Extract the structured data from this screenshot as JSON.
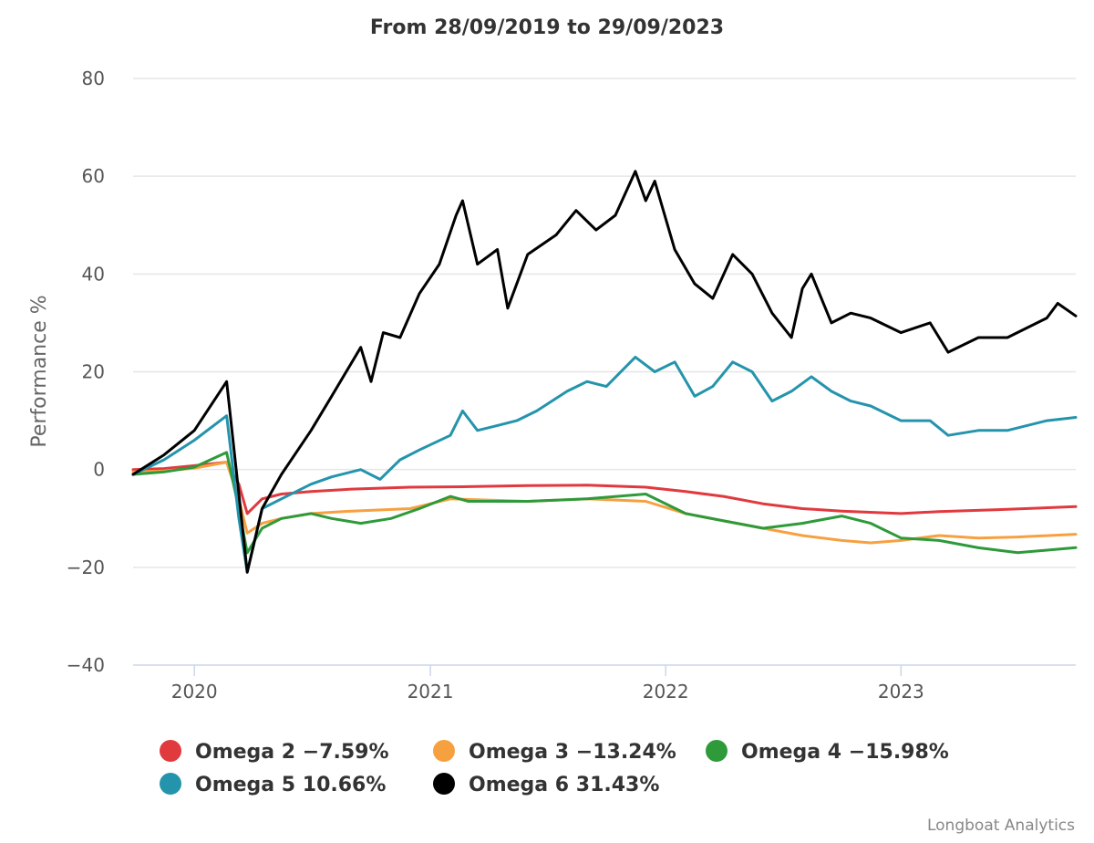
{
  "chart_data": {
    "type": "line",
    "title": "From 28/09/2019 to 29/09/2023",
    "xlabel": "",
    "ylabel": "Performance %",
    "ylim": [
      -40,
      80
    ],
    "yticks": [
      -40,
      -20,
      0,
      20,
      40,
      60,
      80
    ],
    "yticklabels": [
      "−40",
      "−20",
      "0",
      "20",
      "40",
      "60",
      "80"
    ],
    "xlim": [
      "2019-09-28",
      "2023-09-29"
    ],
    "xticks": [
      "2020-01-01",
      "2021-01-01",
      "2022-01-01",
      "2023-01-01"
    ],
    "xticklabels": [
      "2020",
      "2021",
      "2022",
      "2023"
    ],
    "grid": true,
    "legend_position": "bottom",
    "series": [
      {
        "name": "Omega 2",
        "legend_label": "Omega 2 −7.59%",
        "color": "#e0393e",
        "points": [
          [
            "2019-09-28",
            0
          ],
          [
            "2019-11-15",
            0.2
          ],
          [
            "2020-01-01",
            0.8
          ],
          [
            "2020-02-20",
            1.5
          ],
          [
            "2020-03-10",
            -3
          ],
          [
            "2020-03-23",
            -9
          ],
          [
            "2020-04-15",
            -6
          ],
          [
            "2020-05-15",
            -5
          ],
          [
            "2020-06-30",
            -4.5
          ],
          [
            "2020-09-01",
            -4
          ],
          [
            "2020-12-01",
            -3.6
          ],
          [
            "2021-03-01",
            -3.5
          ],
          [
            "2021-06-01",
            -3.3
          ],
          [
            "2021-09-01",
            -3.2
          ],
          [
            "2021-12-01",
            -3.6
          ],
          [
            "2022-02-01",
            -4.5
          ],
          [
            "2022-04-01",
            -5.5
          ],
          [
            "2022-06-01",
            -7
          ],
          [
            "2022-08-01",
            -8
          ],
          [
            "2022-10-01",
            -8.5
          ],
          [
            "2023-01-01",
            -9
          ],
          [
            "2023-03-01",
            -8.6
          ],
          [
            "2023-06-01",
            -8.2
          ],
          [
            "2023-09-29",
            -7.59
          ]
        ]
      },
      {
        "name": "Omega 3",
        "legend_label": "Omega 3 −13.24%",
        "color": "#f7a040",
        "points": [
          [
            "2019-09-28",
            -0.5
          ],
          [
            "2019-11-15",
            -0.3
          ],
          [
            "2020-01-01",
            0.3
          ],
          [
            "2020-02-20",
            1.5
          ],
          [
            "2020-03-10",
            -6
          ],
          [
            "2020-03-23",
            -13
          ],
          [
            "2020-04-15",
            -11
          ],
          [
            "2020-05-15",
            -10
          ],
          [
            "2020-06-30",
            -9
          ],
          [
            "2020-09-01",
            -8.5
          ],
          [
            "2020-12-01",
            -8
          ],
          [
            "2021-02-01",
            -6
          ],
          [
            "2021-06-01",
            -6.5
          ],
          [
            "2021-09-01",
            -6
          ],
          [
            "2021-12-01",
            -6.5
          ],
          [
            "2022-02-01",
            -9
          ],
          [
            "2022-04-01",
            -10.5
          ],
          [
            "2022-06-01",
            -12
          ],
          [
            "2022-08-01",
            -13.5
          ],
          [
            "2022-10-01",
            -14.5
          ],
          [
            "2022-11-15",
            -15
          ],
          [
            "2023-01-01",
            -14.5
          ],
          [
            "2023-03-01",
            -13.5
          ],
          [
            "2023-05-01",
            -14
          ],
          [
            "2023-07-01",
            -13.8
          ],
          [
            "2023-09-29",
            -13.24
          ]
        ]
      },
      {
        "name": "Omega 4",
        "legend_label": "Omega 4 −15.98%",
        "color": "#2e9a3a",
        "points": [
          [
            "2019-09-28",
            -1
          ],
          [
            "2019-11-15",
            -0.5
          ],
          [
            "2020-01-01",
            0.5
          ],
          [
            "2020-02-20",
            3.5
          ],
          [
            "2020-03-10",
            -8
          ],
          [
            "2020-03-23",
            -17
          ],
          [
            "2020-04-15",
            -12
          ],
          [
            "2020-05-15",
            -10
          ],
          [
            "2020-06-30",
            -9
          ],
          [
            "2020-08-01",
            -10
          ],
          [
            "2020-09-15",
            -11
          ],
          [
            "2020-11-01",
            -10
          ],
          [
            "2020-12-15",
            -8
          ],
          [
            "2021-02-01",
            -5.5
          ],
          [
            "2021-03-01",
            -6.5
          ],
          [
            "2021-06-01",
            -6.5
          ],
          [
            "2021-09-01",
            -6
          ],
          [
            "2021-12-01",
            -5
          ],
          [
            "2022-02-01",
            -9
          ],
          [
            "2022-04-01",
            -10.5
          ],
          [
            "2022-06-01",
            -12
          ],
          [
            "2022-08-01",
            -11
          ],
          [
            "2022-10-01",
            -9.5
          ],
          [
            "2022-11-15",
            -11
          ],
          [
            "2023-01-01",
            -14
          ],
          [
            "2023-03-01",
            -14.5
          ],
          [
            "2023-05-01",
            -16
          ],
          [
            "2023-07-01",
            -17
          ],
          [
            "2023-09-29",
            -15.98
          ]
        ]
      },
      {
        "name": "Omega 5",
        "legend_label": "Omega 5 10.66%",
        "color": "#2494ac",
        "points": [
          [
            "2019-09-28",
            -1
          ],
          [
            "2019-11-15",
            2
          ],
          [
            "2020-01-01",
            6
          ],
          [
            "2020-02-20",
            11
          ],
          [
            "2020-03-10",
            -10
          ],
          [
            "2020-03-23",
            -21
          ],
          [
            "2020-04-15",
            -8
          ],
          [
            "2020-05-15",
            -6
          ],
          [
            "2020-06-30",
            -3
          ],
          [
            "2020-08-01",
            -1.5
          ],
          [
            "2020-09-15",
            0
          ],
          [
            "2020-10-15",
            -2
          ],
          [
            "2020-11-15",
            2
          ],
          [
            "2020-12-15",
            4
          ],
          [
            "2021-02-01",
            7
          ],
          [
            "2021-02-20",
            12
          ],
          [
            "2021-03-15",
            8
          ],
          [
            "2021-04-15",
            9
          ],
          [
            "2021-05-15",
            10
          ],
          [
            "2021-06-15",
            12
          ],
          [
            "2021-08-01",
            16
          ],
          [
            "2021-09-01",
            18
          ],
          [
            "2021-10-01",
            17
          ],
          [
            "2021-11-15",
            23
          ],
          [
            "2021-12-15",
            20
          ],
          [
            "2022-01-15",
            22
          ],
          [
            "2022-02-15",
            15
          ],
          [
            "2022-03-15",
            17
          ],
          [
            "2022-04-15",
            22
          ],
          [
            "2022-05-15",
            20
          ],
          [
            "2022-06-15",
            14
          ],
          [
            "2022-07-15",
            16
          ],
          [
            "2022-08-15",
            19
          ],
          [
            "2022-09-15",
            16
          ],
          [
            "2022-10-15",
            14
          ],
          [
            "2022-11-15",
            13
          ],
          [
            "2023-01-01",
            10
          ],
          [
            "2023-02-15",
            10
          ],
          [
            "2023-03-15",
            7
          ],
          [
            "2023-05-01",
            8
          ],
          [
            "2023-06-15",
            8
          ],
          [
            "2023-08-15",
            10
          ],
          [
            "2023-09-29",
            10.66
          ]
        ]
      },
      {
        "name": "Omega 6",
        "legend_label": "Omega 6 31.43%",
        "color": "#000000",
        "points": [
          [
            "2019-09-28",
            -1
          ],
          [
            "2019-11-15",
            3
          ],
          [
            "2020-01-01",
            8
          ],
          [
            "2020-02-20",
            18
          ],
          [
            "2020-03-10",
            -5
          ],
          [
            "2020-03-23",
            -21
          ],
          [
            "2020-04-15",
            -8
          ],
          [
            "2020-05-15",
            -1
          ],
          [
            "2020-06-30",
            8
          ],
          [
            "2020-08-01",
            15
          ],
          [
            "2020-09-15",
            25
          ],
          [
            "2020-10-01",
            18
          ],
          [
            "2020-10-20",
            28
          ],
          [
            "2020-11-15",
            27
          ],
          [
            "2020-12-15",
            36
          ],
          [
            "2021-01-15",
            42
          ],
          [
            "2021-02-10",
            52
          ],
          [
            "2021-02-20",
            55
          ],
          [
            "2021-03-15",
            42
          ],
          [
            "2021-04-15",
            45
          ],
          [
            "2021-05-01",
            33
          ],
          [
            "2021-06-01",
            44
          ],
          [
            "2021-07-15",
            48
          ],
          [
            "2021-08-15",
            53
          ],
          [
            "2021-09-15",
            49
          ],
          [
            "2021-10-15",
            52
          ],
          [
            "2021-11-15",
            61
          ],
          [
            "2021-12-01",
            55
          ],
          [
            "2021-12-15",
            59
          ],
          [
            "2022-01-15",
            45
          ],
          [
            "2022-02-15",
            38
          ],
          [
            "2022-03-15",
            35
          ],
          [
            "2022-04-15",
            44
          ],
          [
            "2022-05-15",
            40
          ],
          [
            "2022-06-15",
            32
          ],
          [
            "2022-07-15",
            27
          ],
          [
            "2022-08-01",
            37
          ],
          [
            "2022-08-15",
            40
          ],
          [
            "2022-09-15",
            30
          ],
          [
            "2022-10-15",
            32
          ],
          [
            "2022-11-15",
            31
          ],
          [
            "2023-01-01",
            28
          ],
          [
            "2023-02-15",
            30
          ],
          [
            "2023-03-15",
            24
          ],
          [
            "2023-05-01",
            27
          ],
          [
            "2023-06-15",
            27
          ],
          [
            "2023-08-15",
            31
          ],
          [
            "2023-09-01",
            34
          ],
          [
            "2023-09-29",
            31.43
          ]
        ]
      }
    ]
  },
  "credits": "Longboat Analytics"
}
